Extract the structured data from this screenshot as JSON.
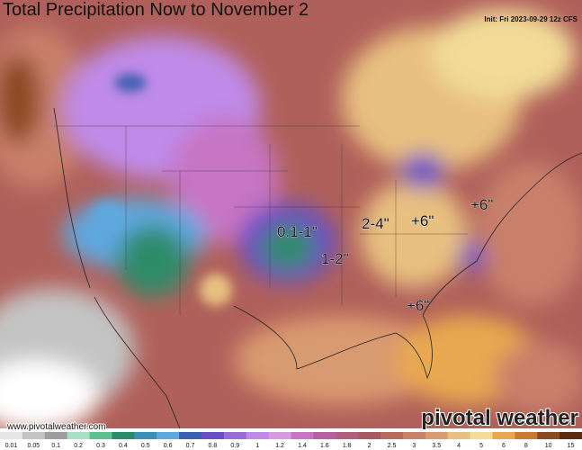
{
  "header": {
    "title": "Total Precipitation Now to November 2",
    "init": "Init: Fri 2023-09-29 12z CFS"
  },
  "annotations": [
    "0.1-1\"",
    "1-2\"",
    "2-4\"",
    "+6\"",
    "+6\"",
    "+6\""
  ],
  "footer": {
    "website": "www.pivotalweather.com",
    "brand": "pivotal weather"
  },
  "legend": [
    {
      "label": "0.01",
      "color": "#e6e6e6"
    },
    {
      "label": "0.05",
      "color": "#c4c4c4"
    },
    {
      "label": "0.1",
      "color": "#9e9e9e"
    },
    {
      "label": "0.2",
      "color": "#a8e0c4"
    },
    {
      "label": "0.3",
      "color": "#5fc08f"
    },
    {
      "label": "0.4",
      "color": "#2e8b6a"
    },
    {
      "label": "0.5",
      "color": "#3d8fb8"
    },
    {
      "label": "0.6",
      "color": "#5fa8e0"
    },
    {
      "label": "0.7",
      "color": "#3d5fb0"
    },
    {
      "label": "0.8",
      "color": "#6a4fc4"
    },
    {
      "label": "0.9",
      "color": "#9a6ad8"
    },
    {
      "label": "1",
      "color": "#c08ae8"
    },
    {
      "label": "1.2",
      "color": "#d59ae0"
    },
    {
      "label": "1.4",
      "color": "#c774c4"
    },
    {
      "label": "1.6",
      "color": "#b85fa0"
    },
    {
      "label": "1.8",
      "color": "#b0607e"
    },
    {
      "label": "2",
      "color": "#a85a60"
    },
    {
      "label": "2.5",
      "color": "#b86a5c"
    },
    {
      "label": "3",
      "color": "#c8806a"
    },
    {
      "label": "3.5",
      "color": "#d89a70"
    },
    {
      "label": "4",
      "color": "#e8c080"
    },
    {
      "label": "5",
      "color": "#f2dc98"
    },
    {
      "label": "6",
      "color": "#e8a850"
    },
    {
      "label": "8",
      "color": "#c87a30"
    },
    {
      "label": "10",
      "color": "#8c4a20"
    },
    {
      "label": "15",
      "color": "#5a2c10"
    }
  ]
}
